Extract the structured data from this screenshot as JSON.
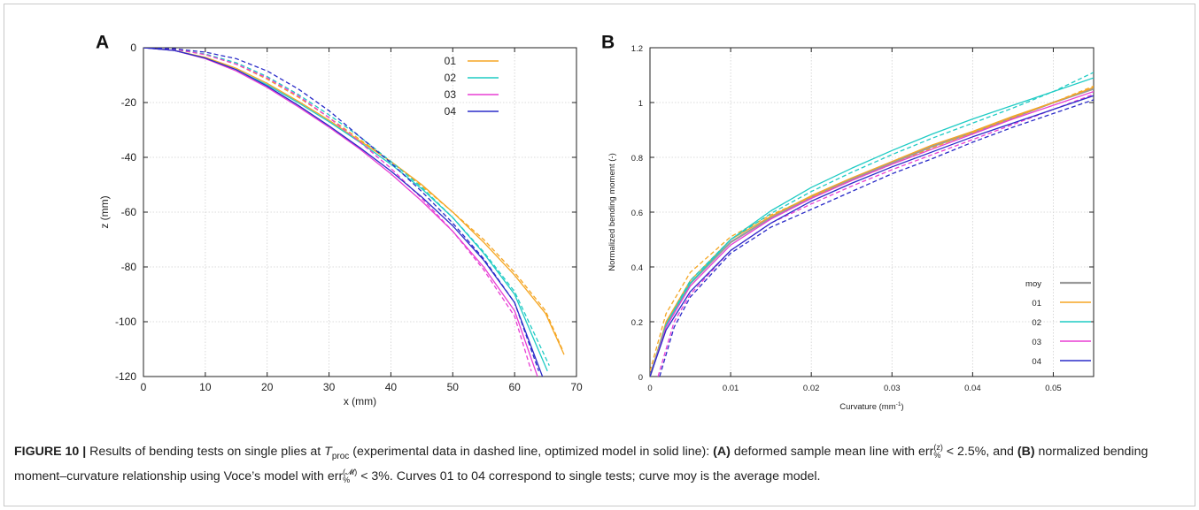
{
  "colors": {
    "moy": "#9a9a9a",
    "01": "#f5a623",
    "02": "#1fcbc4",
    "03": "#e83ed4",
    "04": "#2a2bc8"
  },
  "chart_data": [
    {
      "panel": "A",
      "type": "line",
      "xlabel": "x (mm)",
      "ylabel": "z (mm)",
      "xlim": [
        0,
        70
      ],
      "ylim": [
        -120,
        0
      ],
      "xticks": [
        0,
        10,
        20,
        30,
        40,
        50,
        60,
        70
      ],
      "yticks": [
        0,
        -20,
        -40,
        -60,
        -80,
        -100,
        -120
      ],
      "grid": true,
      "legend_placement": "top-right",
      "legend": [
        "01",
        "02",
        "03",
        "04"
      ],
      "series": [
        {
          "name": "01",
          "style": "solid",
          "x": [
            0,
            5,
            10,
            15,
            20,
            25,
            30,
            35,
            40,
            45,
            50,
            55,
            60,
            65,
            68
          ],
          "y": [
            0,
            -1,
            -3.5,
            -7.5,
            -13,
            -19.5,
            -26.5,
            -34,
            -41.5,
            -50,
            -60,
            -71,
            -83,
            -97,
            -112
          ]
        },
        {
          "name": "01",
          "style": "dashed",
          "x": [
            0,
            5,
            10,
            15,
            20,
            25,
            30,
            35,
            40,
            45,
            50,
            55,
            60,
            65,
            67.7
          ],
          "y": [
            0,
            -0.6,
            -2.5,
            -6,
            -11.5,
            -18,
            -25.5,
            -33.5,
            -41.5,
            -50.5,
            -60,
            -70,
            -82,
            -96,
            -110
          ]
        },
        {
          "name": "02",
          "style": "solid",
          "x": [
            0,
            5,
            10,
            15,
            20,
            25,
            30,
            35,
            40,
            45,
            50,
            55,
            60,
            65.3
          ],
          "y": [
            0,
            -1,
            -3.8,
            -8,
            -13.5,
            -20,
            -27,
            -34.5,
            -42.5,
            -51.5,
            -62,
            -75,
            -90,
            -118
          ]
        },
        {
          "name": "02",
          "style": "dashed",
          "x": [
            0,
            5,
            10,
            15,
            20,
            25,
            30,
            35,
            40,
            45,
            50,
            55,
            60,
            65.6
          ],
          "y": [
            0,
            -0.6,
            -2.3,
            -5.5,
            -10.5,
            -17,
            -24.5,
            -32.5,
            -41.5,
            -51,
            -62,
            -74.5,
            -89,
            -116
          ]
        },
        {
          "name": "03",
          "style": "solid",
          "x": [
            0,
            5,
            10,
            15,
            20,
            25,
            30,
            35,
            40,
            45,
            50,
            55,
            60,
            63.7
          ],
          "y": [
            0,
            -1,
            -4,
            -8.5,
            -14.5,
            -21.5,
            -29,
            -37,
            -46,
            -56,
            -67,
            -80,
            -96,
            -120
          ]
        },
        {
          "name": "03",
          "style": "dashed",
          "x": [
            0,
            5,
            10,
            15,
            20,
            25,
            30,
            35,
            40,
            45,
            50,
            55,
            60,
            62.7
          ],
          "y": [
            0,
            -0.5,
            -2.5,
            -6,
            -11,
            -17.5,
            -25.5,
            -34.5,
            -44,
            -55,
            -67,
            -81,
            -98,
            -118
          ]
        },
        {
          "name": "04",
          "style": "solid",
          "x": [
            0,
            5,
            10,
            15,
            20,
            25,
            30,
            35,
            40,
            45,
            50,
            55,
            60,
            64.5
          ],
          "y": [
            0,
            -1,
            -3.8,
            -8,
            -14,
            -21,
            -28.5,
            -36.5,
            -45,
            -54.5,
            -65,
            -77.5,
            -93,
            -120
          ]
        },
        {
          "name": "04",
          "style": "dashed",
          "x": [
            0,
            5,
            10,
            15,
            20,
            25,
            30,
            35,
            40,
            45,
            50,
            55,
            60,
            63.9
          ],
          "y": [
            0,
            -0.4,
            -1.6,
            -4,
            -8.5,
            -15,
            -23,
            -32.5,
            -42,
            -52.5,
            -64,
            -77,
            -93,
            -118
          ]
        }
      ]
    },
    {
      "panel": "B",
      "type": "line",
      "xlabel": "Curvature (mm",
      "xlabel_sup": "-1",
      "xlabel_end": ")",
      "ylabel": "Normalized bending moment (-)",
      "xlim": [
        0,
        0.055
      ],
      "ylim": [
        0,
        1.2
      ],
      "xticks": [
        0,
        0.01,
        0.02,
        0.03,
        0.04,
        0.05
      ],
      "xtick_labels": [
        "0",
        "0.01",
        "0.02",
        "0.03",
        "0.04",
        "0.05"
      ],
      "yticks": [
        0,
        0.2,
        0.4,
        0.6,
        0.8,
        1,
        1.2
      ],
      "ytick_labels": [
        "0",
        "0.2",
        "0.4",
        "0.6",
        "0.8",
        "1",
        "1.2"
      ],
      "grid": true,
      "legend_placement": "bottom-right",
      "legend": [
        "moy",
        "01",
        "02",
        "03",
        "04"
      ],
      "series": [
        {
          "name": "moy",
          "style": "solid",
          "x": [
            0,
            0.002,
            0.005,
            0.01,
            0.015,
            0.02,
            0.025,
            0.03,
            0.035,
            0.04,
            0.045,
            0.05,
            0.055
          ],
          "y": [
            0,
            0.19,
            0.34,
            0.49,
            0.58,
            0.655,
            0.72,
            0.78,
            0.84,
            0.89,
            0.945,
            1.0,
            1.05
          ]
        },
        {
          "name": "01",
          "style": "solid",
          "x": [
            0,
            0.002,
            0.005,
            0.01,
            0.015,
            0.02,
            0.025,
            0.03,
            0.035,
            0.04,
            0.045,
            0.05,
            0.055
          ],
          "y": [
            0,
            0.2,
            0.35,
            0.5,
            0.585,
            0.66,
            0.725,
            0.785,
            0.845,
            0.895,
            0.95,
            1.0,
            1.055
          ]
        },
        {
          "name": "01",
          "style": "dashed",
          "x": [
            0,
            0.002,
            0.005,
            0.01,
            0.015,
            0.02,
            0.025,
            0.03,
            0.035,
            0.04,
            0.045,
            0.05,
            0.055
          ],
          "y": [
            0.02,
            0.23,
            0.38,
            0.51,
            0.59,
            0.655,
            0.715,
            0.775,
            0.835,
            0.89,
            0.945,
            1.0,
            1.06
          ]
        },
        {
          "name": "02",
          "style": "solid",
          "x": [
            0,
            0.002,
            0.005,
            0.01,
            0.015,
            0.02,
            0.025,
            0.03,
            0.035,
            0.04,
            0.045,
            0.05,
            0.055
          ],
          "y": [
            0,
            0.19,
            0.34,
            0.5,
            0.605,
            0.69,
            0.76,
            0.825,
            0.885,
            0.94,
            0.99,
            1.04,
            1.09
          ]
        },
        {
          "name": "02",
          "style": "dashed",
          "x": [
            0,
            0.002,
            0.005,
            0.01,
            0.015,
            0.02,
            0.025,
            0.03,
            0.035,
            0.04,
            0.045,
            0.05,
            0.055
          ],
          "y": [
            0,
            0.19,
            0.35,
            0.5,
            0.595,
            0.675,
            0.745,
            0.81,
            0.87,
            0.925,
            0.98,
            1.04,
            1.11
          ]
        },
        {
          "name": "03",
          "style": "solid",
          "x": [
            0,
            0.002,
            0.005,
            0.01,
            0.015,
            0.02,
            0.025,
            0.03,
            0.035,
            0.04,
            0.045,
            0.05,
            0.055
          ],
          "y": [
            0,
            0.18,
            0.33,
            0.48,
            0.575,
            0.65,
            0.715,
            0.775,
            0.83,
            0.885,
            0.94,
            0.99,
            1.04
          ]
        },
        {
          "name": "03",
          "style": "dashed",
          "x": [
            0.001,
            0.003,
            0.005,
            0.01,
            0.015,
            0.02,
            0.025,
            0.03,
            0.035,
            0.04,
            0.045,
            0.05,
            0.055
          ],
          "y": [
            0,
            0.2,
            0.3,
            0.46,
            0.56,
            0.63,
            0.695,
            0.755,
            0.81,
            0.865,
            0.92,
            0.975,
            1.03
          ]
        },
        {
          "name": "04",
          "style": "solid",
          "x": [
            0,
            0.002,
            0.005,
            0.01,
            0.015,
            0.02,
            0.025,
            0.03,
            0.035,
            0.04,
            0.045,
            0.05,
            0.055
          ],
          "y": [
            0,
            0.17,
            0.31,
            0.46,
            0.56,
            0.64,
            0.705,
            0.765,
            0.82,
            0.875,
            0.925,
            0.975,
            1.025
          ]
        },
        {
          "name": "04",
          "style": "dashed",
          "x": [
            0.0012,
            0.003,
            0.005,
            0.01,
            0.015,
            0.02,
            0.025,
            0.03,
            0.035,
            0.04,
            0.045,
            0.05,
            0.055
          ],
          "y": [
            0,
            0.18,
            0.29,
            0.45,
            0.545,
            0.61,
            0.675,
            0.74,
            0.795,
            0.855,
            0.91,
            0.96,
            1.01
          ]
        }
      ]
    }
  ],
  "caption": {
    "figure_label": "FIGURE 10 |",
    "intro": " Results of bending tests on single plies at ",
    "tproc_T": "T",
    "tproc_sub": "proc",
    "part1": " (experimental data in dashed line, optimized model in solid line): ",
    "a_label": "(A)",
    "part2": " deformed sample mean line with ",
    "err": "err",
    "err_z_sup": "(z)",
    "err_sub": "%",
    "part3": " < 2.5%, and ",
    "b_label": "(B)",
    "part4": " normalized bending moment–curvature relationship using Voce’s model with ",
    "err_m_sup": "(𝓜)",
    "part5": " < 3%. Curves 01 to 04 correspond to single tests; curve moy is the average model."
  }
}
